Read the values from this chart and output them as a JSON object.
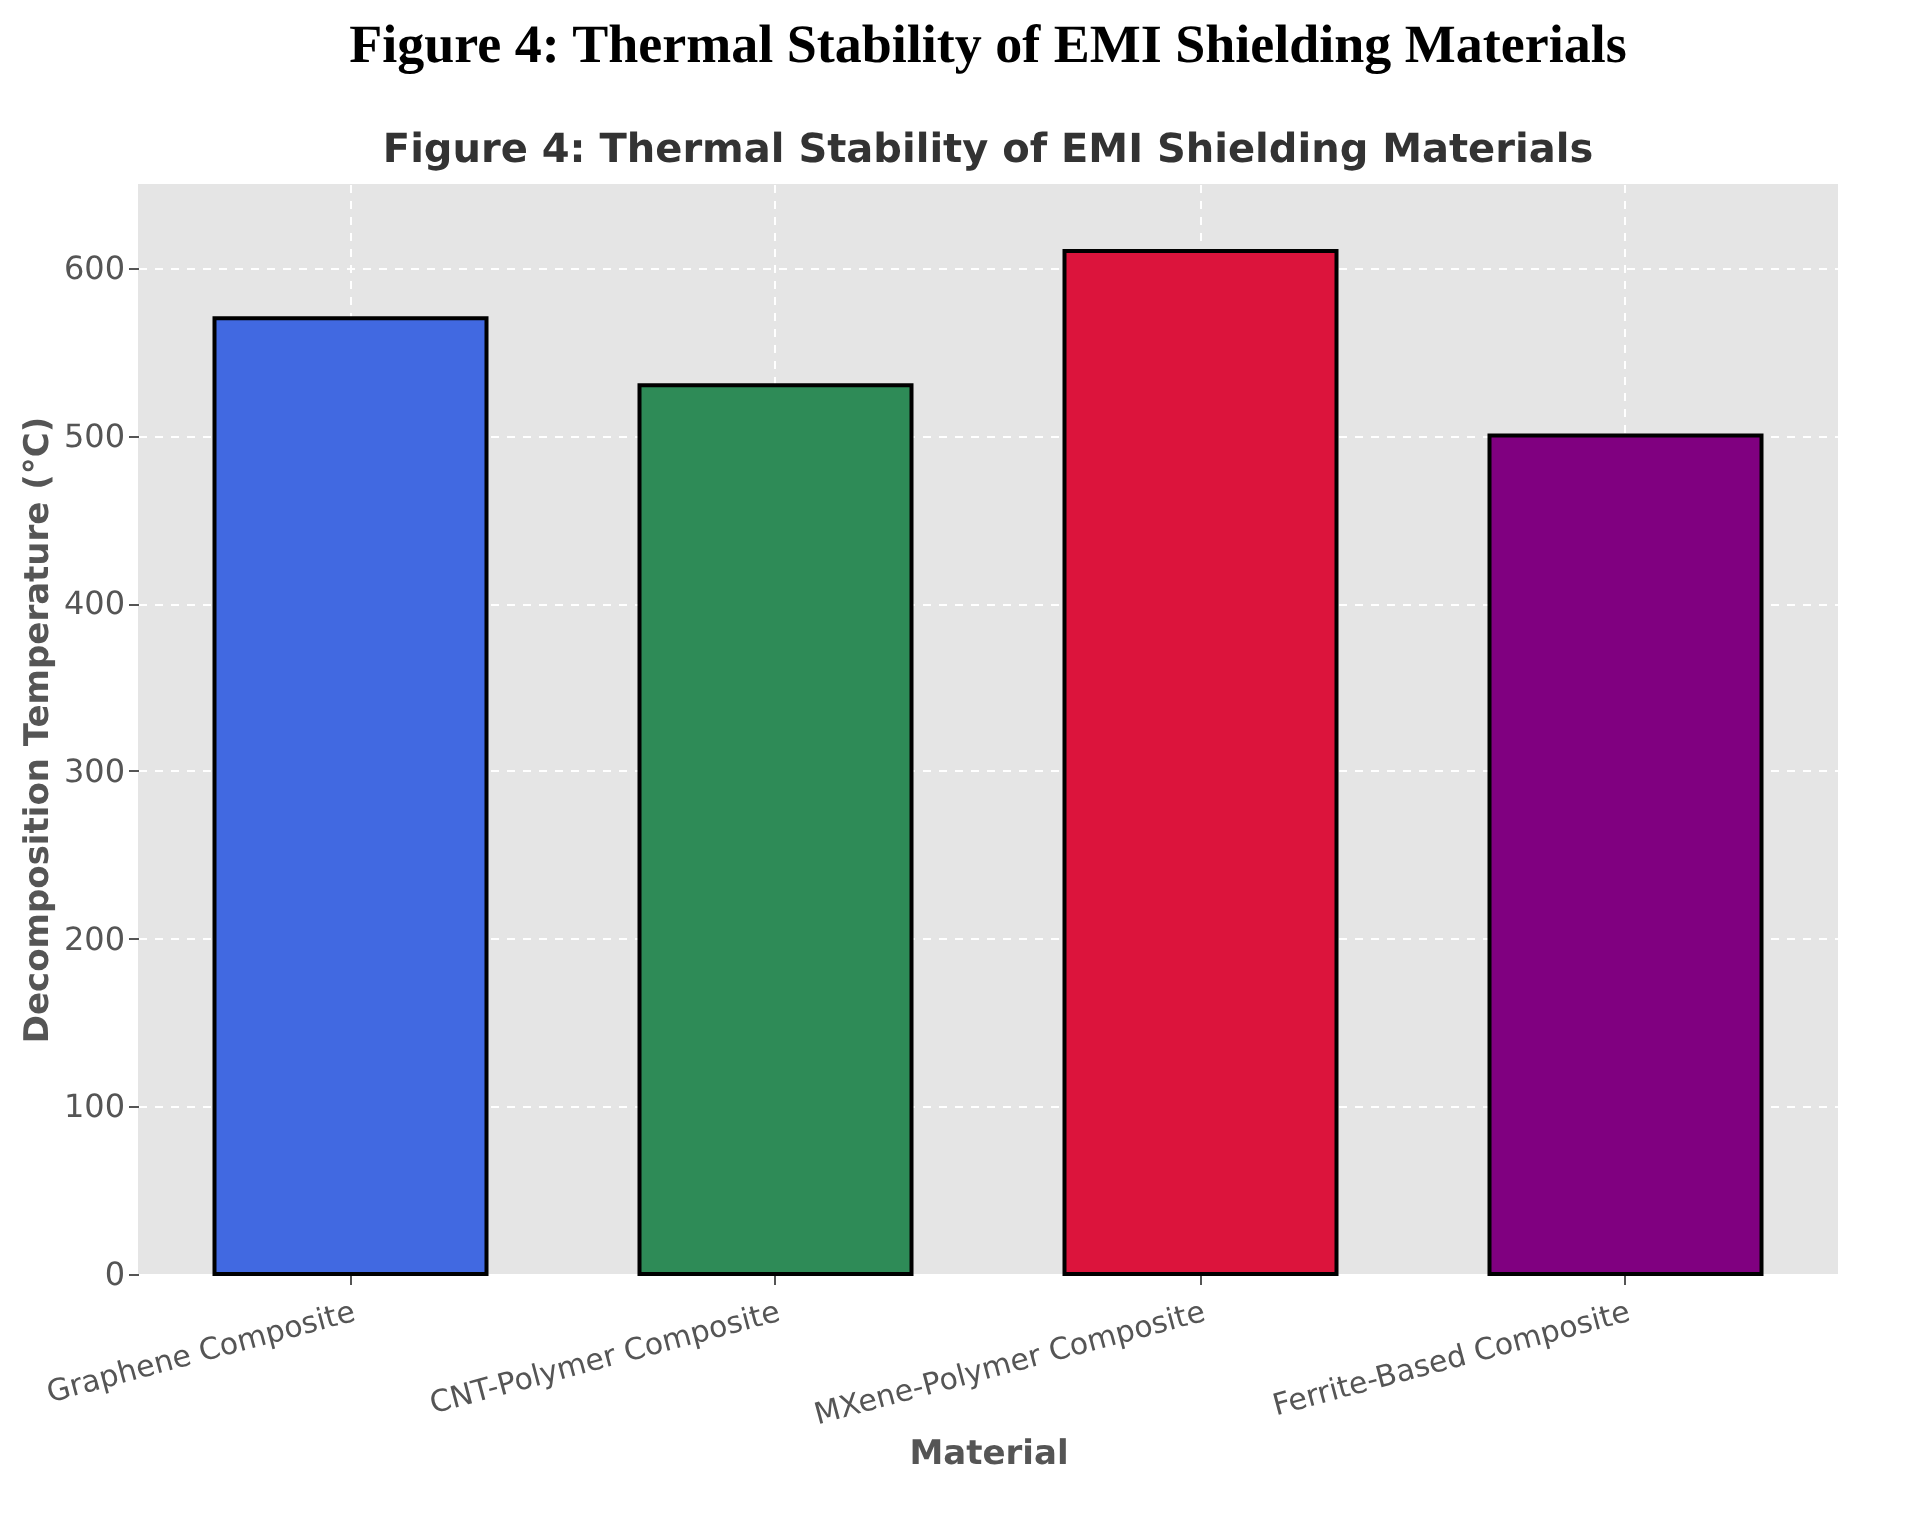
{
  "chart_data": {
    "type": "bar",
    "title": "Figure 4: Thermal Stability of EMI Shielding Materials",
    "subtitle": "Figure 4: Thermal Stability of EMI Shielding Materials",
    "xlabel": "Material",
    "ylabel": "Decomposition Temperature (°C)",
    "categories": [
      "Graphene Composite",
      "CNT-Polymer Composite",
      "MXene-Polymer Composite",
      "Ferrite-Based Composite"
    ],
    "values": [
      570,
      530,
      610,
      500
    ],
    "colors": [
      "#4169e1",
      "#2e8b57",
      "#dc143c",
      "#800080"
    ],
    "ylim": [
      0,
      650
    ],
    "yticks": [
      0,
      100,
      200,
      300,
      400,
      500,
      600
    ],
    "grid": true
  }
}
